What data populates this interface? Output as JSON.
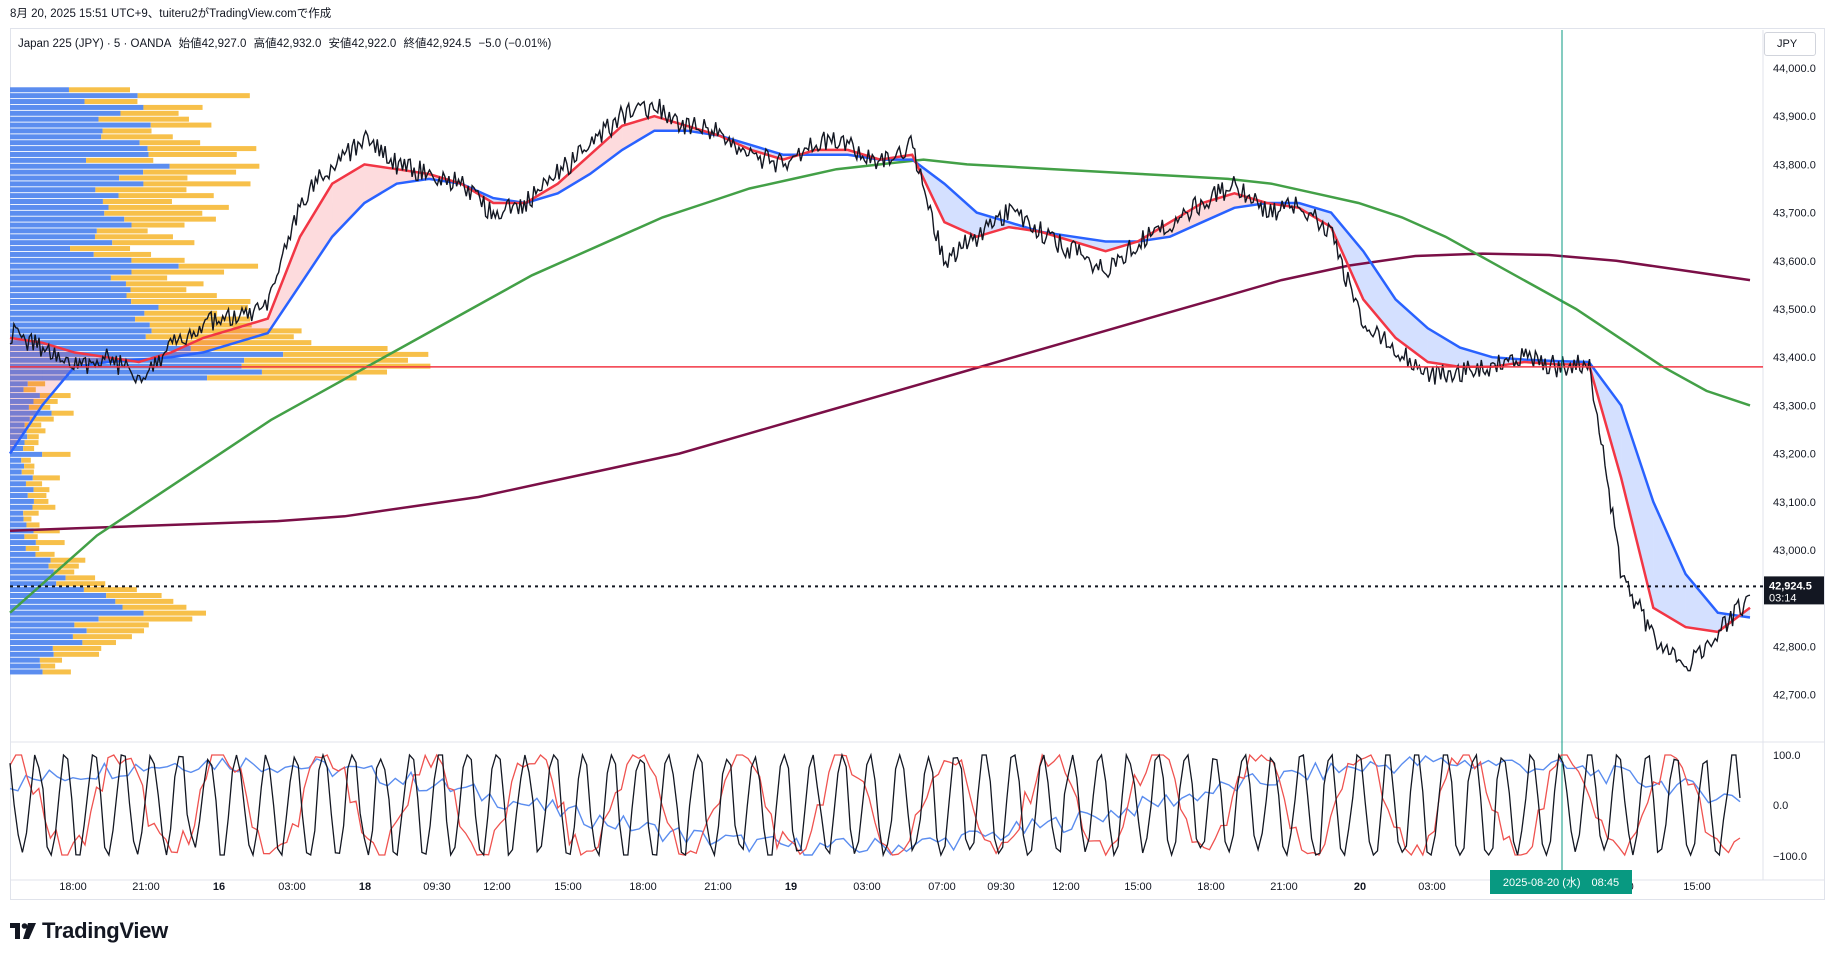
{
  "header": "8月 20, 2025 15:51 UTC+9、tuiteru2がTradingView.comで作成",
  "symbol": {
    "name": "Japan 225 (JPY) · 5 · OANDA",
    "open": "始値42,927.0",
    "high": "高値42,932.0",
    "low": "安値42,922.0",
    "close": "終値42,924.5",
    "change": "−5.0 (−0.01%)"
  },
  "currency": "JPY",
  "price_label": "42,924.5",
  "countdown": "03:14",
  "crosshair_label": "2025-08-20 (水)　08:45",
  "osc_labels": [
    "100.0",
    "0.0",
    "−100.0"
  ],
  "brand": "TradingView",
  "colors": {
    "ma_fast": "#f23645",
    "ma_mid": "#2962ff",
    "ma_slow": "#43a047",
    "ma_long": "#7b0f47",
    "volume_up": "#5b8def",
    "volume_down": "#f7c04a",
    "hline": "#f23645",
    "crosshair": "#089981"
  },
  "chart_data": {
    "type": "line",
    "title": "Japan 225 (JPY) · 5 · OANDA",
    "yticks": [
      "44,000.0",
      "43,900.0",
      "43,800.0",
      "43,700.0",
      "43,600.0",
      "43,500.0",
      "43,400.0",
      "43,300.0",
      "43,200.0",
      "43,100.0",
      "43,000.0",
      "42,900.0",
      "42,800.0",
      "42,700.0"
    ],
    "ylim": [
      42650,
      44030
    ],
    "xticks": [
      "18:00",
      "21:00",
      "16",
      "03:00",
      "18",
      "09:30",
      "12:00",
      "15:00",
      "18:00",
      "21:00",
      "19",
      "03:00",
      "07:00",
      "09:30",
      "12:00",
      "15:00",
      "18:00",
      "21:00",
      "20",
      "03:00",
      "",
      "12:00",
      "15:00"
    ],
    "horizontal_line": 43380,
    "last_price": 42924.5,
    "series": [
      {
        "name": "",
        "color": "#131722",
        "values": [
          43450,
          43420,
          43380,
          43400,
          43360,
          43420,
          43470,
          43480,
          43500,
          43720,
          43800,
          43850,
          43800,
          43780,
          43760,
          43700,
          43720,
          43780,
          43840,
          43900,
          43920,
          43880,
          43870,
          43820,
          43800,
          43850,
          43840,
          43800,
          43840,
          43600,
          43650,
          43700,
          43660,
          43620,
          43580,
          43640,
          43680,
          43720,
          43760,
          43700,
          43720,
          43660,
          43460,
          43420,
          43360,
          43370,
          43380,
          43400,
          43380,
          43390,
          42950,
          42820,
          42760,
          42830,
          42900
        ]
      },
      {
        "name": "",
        "color": "#f23645",
        "values": [
          43440,
          43430,
          43410,
          43400,
          43390,
          43410,
          43440,
          43460,
          43480,
          43650,
          43760,
          43800,
          43790,
          43780,
          43760,
          43720,
          43720,
          43760,
          43820,
          43880,
          43900,
          43880,
          43860,
          43830,
          43810,
          43830,
          43830,
          43810,
          43820,
          43680,
          43650,
          43670,
          43660,
          43640,
          43620,
          43640,
          43680,
          43720,
          43740,
          43720,
          43710,
          43670,
          43520,
          43440,
          43390,
          43380,
          43380,
          43390,
          43385,
          43385,
          43150,
          42880,
          42840,
          42830,
          42880
        ]
      },
      {
        "name": "",
        "color": "#2962ff",
        "values": [
          43200,
          43300,
          43380,
          43390,
          43395,
          43400,
          43410,
          43430,
          43450,
          43550,
          43650,
          43720,
          43760,
          43770,
          43760,
          43730,
          43720,
          43740,
          43780,
          43830,
          43870,
          43870,
          43860,
          43840,
          43820,
          43820,
          43820,
          43810,
          43810,
          43760,
          43700,
          43680,
          43660,
          43650,
          43640,
          43640,
          43650,
          43680,
          43710,
          43720,
          43720,
          43700,
          43620,
          43520,
          43460,
          43420,
          43400,
          43395,
          43392,
          43390,
          43300,
          43100,
          42950,
          42870,
          42860
        ]
      },
      {
        "name": "",
        "color": "#43a047",
        "values": [
          42870,
          42950,
          43030,
          43090,
          43150,
          43210,
          43270,
          43320,
          43370,
          43420,
          43470,
          43520,
          43570,
          43610,
          43650,
          43690,
          43720,
          43750,
          43770,
          43790,
          43800,
          43810,
          43800,
          43795,
          43790,
          43785,
          43780,
          43775,
          43770,
          43760,
          43740,
          43720,
          43690,
          43650,
          43600,
          43550,
          43500,
          43440,
          43380,
          43330,
          43300
        ]
      },
      {
        "name": "",
        "color": "#7b0f47",
        "values": [
          43040,
          43045,
          43050,
          43055,
          43060,
          43070,
          43090,
          43110,
          43140,
          43170,
          43200,
          43240,
          43280,
          43320,
          43360,
          43400,
          43440,
          43480,
          43520,
          43560,
          43590,
          43610,
          43615,
          43612,
          43600,
          43580,
          43560
        ]
      }
    ],
    "volume_profile_range": [
      42740,
      43960
    ]
  }
}
